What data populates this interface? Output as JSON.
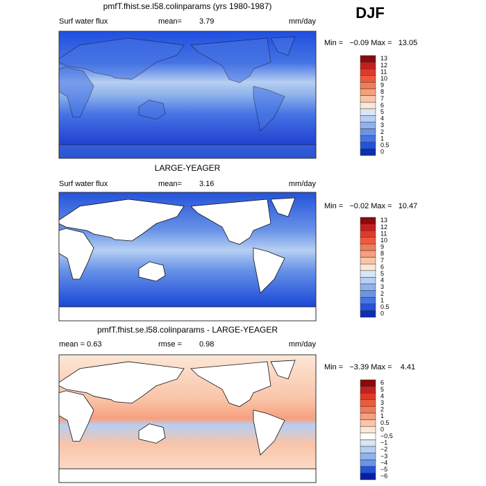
{
  "season": "DJF",
  "panels": [
    {
      "title": "pmfT.fhist.se.l58.colinparams (yrs 1980-1987)",
      "left_label": "Surf water flux",
      "stat_label": "mean=",
      "stat_value": "3.79",
      "units": "mm/day",
      "range_text": "Min =   −0.09 Max =   13.05",
      "colorbar": {
        "labels": [
          "13",
          "12",
          "11",
          "10",
          "9",
          "8",
          "7",
          "6",
          "5",
          "4",
          "3",
          "2",
          "1",
          "0.5",
          "0"
        ],
        "colors": [
          "#8b0a0a",
          "#c81e1e",
          "#e23a28",
          "#ee5a3a",
          "#f27c58",
          "#f6a07e",
          "#f9c4a8",
          "#fde6d6",
          "#d8e6f8",
          "#b6cff2",
          "#8fb3ec",
          "#6a94e8",
          "#4674e4",
          "#2452da",
          "#0a2fb4"
        ]
      }
    },
    {
      "title": "LARGE-YEAGER",
      "left_label": "Surf water flux",
      "stat_label": "mean=",
      "stat_value": "3.16",
      "units": "mm/day",
      "range_text": "Min =   −0.02 Max =   10.47",
      "colorbar": {
        "labels": [
          "13",
          "12",
          "11",
          "10",
          "9",
          "8",
          "7",
          "6",
          "5",
          "4",
          "3",
          "2",
          "1",
          "0.5",
          "0"
        ],
        "colors": [
          "#8b0a0a",
          "#c81e1e",
          "#e23a28",
          "#ee5a3a",
          "#f27c58",
          "#f6a07e",
          "#f9c4a8",
          "#fde6d6",
          "#d8e6f8",
          "#b6cff2",
          "#8fb3ec",
          "#6a94e8",
          "#4674e4",
          "#2452da",
          "#0a2fb4"
        ]
      }
    },
    {
      "title": "pmfT.fhist.se.l58.colinparams - LARGE-YEAGER",
      "left_label": "mean =   0.63",
      "stat_label": "rmse =",
      "stat_value": "0.98",
      "units": "mm/day",
      "range_text": "Min =   −3.39 Max =    4.41",
      "colorbar": {
        "labels": [
          "6",
          "5",
          "4",
          "3",
          "2",
          "1",
          "0.5",
          "0",
          "−0.5",
          "−1",
          "−2",
          "−3",
          "−4",
          "−5",
          "−6"
        ],
        "colors": [
          "#8b0a0a",
          "#c81e1e",
          "#e23a28",
          "#ee5a3a",
          "#f27c58",
          "#f6a07e",
          "#f9c4a8",
          "#fde6d6",
          "#ffffff",
          "#d8e6f8",
          "#b6cff2",
          "#8fb3ec",
          "#6a94e8",
          "#2452da",
          "#0a1fa0"
        ]
      }
    }
  ]
}
